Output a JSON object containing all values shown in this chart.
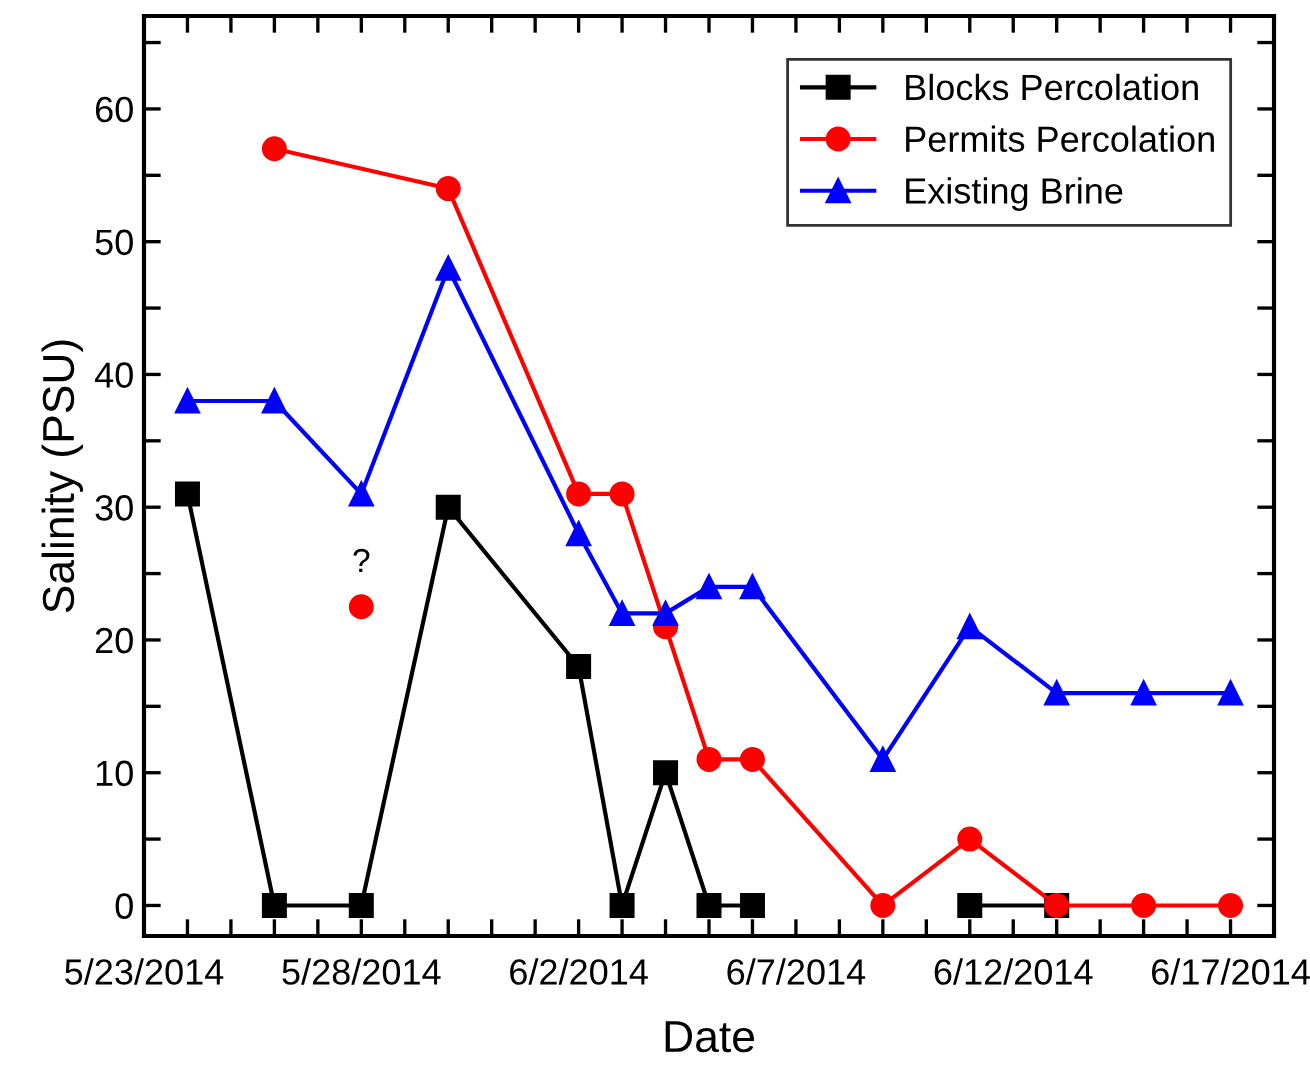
{
  "chart_data": {
    "type": "line",
    "xlabel": "Date",
    "ylabel": "Salinity (PSU)",
    "xlim": [
      "2014-05-23",
      "2014-06-18"
    ],
    "ylim": [
      -2.3,
      67
    ],
    "xticks": [
      {
        "value": "2014-05-23",
        "label": "5/23/2014"
      },
      {
        "value": "2014-05-24",
        "label": null
      },
      {
        "value": "2014-05-25",
        "label": null
      },
      {
        "value": "2014-05-26",
        "label": null
      },
      {
        "value": "2014-05-27",
        "label": null
      },
      {
        "value": "2014-05-28",
        "label": "5/28/2014"
      },
      {
        "value": "2014-05-29",
        "label": null
      },
      {
        "value": "2014-05-30",
        "label": null
      },
      {
        "value": "2014-05-31",
        "label": null
      },
      {
        "value": "2014-06-01",
        "label": null
      },
      {
        "value": "2014-06-02",
        "label": "6/2/2014"
      },
      {
        "value": "2014-06-03",
        "label": null
      },
      {
        "value": "2014-06-04",
        "label": null
      },
      {
        "value": "2014-06-05",
        "label": null
      },
      {
        "value": "2014-06-06",
        "label": null
      },
      {
        "value": "2014-06-07",
        "label": "6/7/2014"
      },
      {
        "value": "2014-06-08",
        "label": null
      },
      {
        "value": "2014-06-09",
        "label": null
      },
      {
        "value": "2014-06-10",
        "label": null
      },
      {
        "value": "2014-06-11",
        "label": null
      },
      {
        "value": "2014-06-12",
        "label": "6/12/2014"
      },
      {
        "value": "2014-06-13",
        "label": null
      },
      {
        "value": "2014-06-14",
        "label": null
      },
      {
        "value": "2014-06-15",
        "label": null
      },
      {
        "value": "2014-06-16",
        "label": null
      },
      {
        "value": "2014-06-17",
        "label": "6/17/2014"
      },
      {
        "value": "2014-06-18",
        "label": null
      }
    ],
    "yticks": [
      0,
      {
        "value": 5,
        "label": null
      },
      10,
      {
        "value": 15,
        "label": null
      },
      20,
      {
        "value": 25,
        "label": null
      },
      30,
      {
        "value": 35,
        "label": null
      },
      40,
      {
        "value": 45,
        "label": null
      },
      50,
      {
        "value": 55,
        "label": null
      },
      60,
      {
        "value": 65,
        "label": null
      }
    ],
    "grid": false,
    "legend": "top right",
    "line_style": "solid",
    "annotations": [
      {
        "text": "?",
        "x": "2014-05-28",
        "y": 22.5
      }
    ],
    "series": [
      {
        "name": "Blocks Percolation",
        "color": "#000000",
        "marker": "square",
        "x": [
          "2014-05-24",
          "2014-05-26",
          "2014-05-28",
          "2014-05-30",
          "2014-06-02",
          "2014-06-03",
          "2014-06-04",
          "2014-06-05",
          "2014-06-06",
          "2014-06-09",
          "2014-06-11",
          "2014-06-13"
        ],
        "values": [
          31,
          0,
          0,
          30,
          18,
          0,
          10,
          0,
          0,
          null,
          0,
          0
        ]
      },
      {
        "name": "Permits Percolation",
        "color": "#ff0000",
        "marker": "circle",
        "x": [
          "2014-05-26",
          "2014-05-30",
          "2014-06-02",
          "2014-06-03",
          "2014-06-04",
          "2014-06-05",
          "2014-06-06",
          "2014-06-09",
          "2014-06-11",
          "2014-06-13",
          "2014-06-15",
          "2014-06-17"
        ],
        "values": [
          57,
          54,
          31,
          31,
          21,
          11,
          11,
          0,
          5,
          0,
          0,
          0
        ]
      },
      {
        "name": "Existing Brine",
        "color": "#0000ff",
        "marker": "triangle",
        "x": [
          "2014-05-24",
          "2014-05-26",
          "2014-05-28",
          "2014-05-30",
          "2014-06-02",
          "2014-06-03",
          "2014-06-04",
          "2014-06-05",
          "2014-06-06",
          "2014-06-09",
          "2014-06-11",
          "2014-06-13",
          "2014-06-15",
          "2014-06-17"
        ],
        "values": [
          38,
          38,
          31,
          48,
          28,
          22,
          22,
          24,
          24,
          11,
          21,
          16,
          16,
          16
        ]
      },
      {
        "type": "scatter",
        "color": "#ff0000",
        "marker": "circle",
        "x": [
          "2014-05-28"
        ],
        "values": [
          22.5
        ]
      }
    ]
  }
}
